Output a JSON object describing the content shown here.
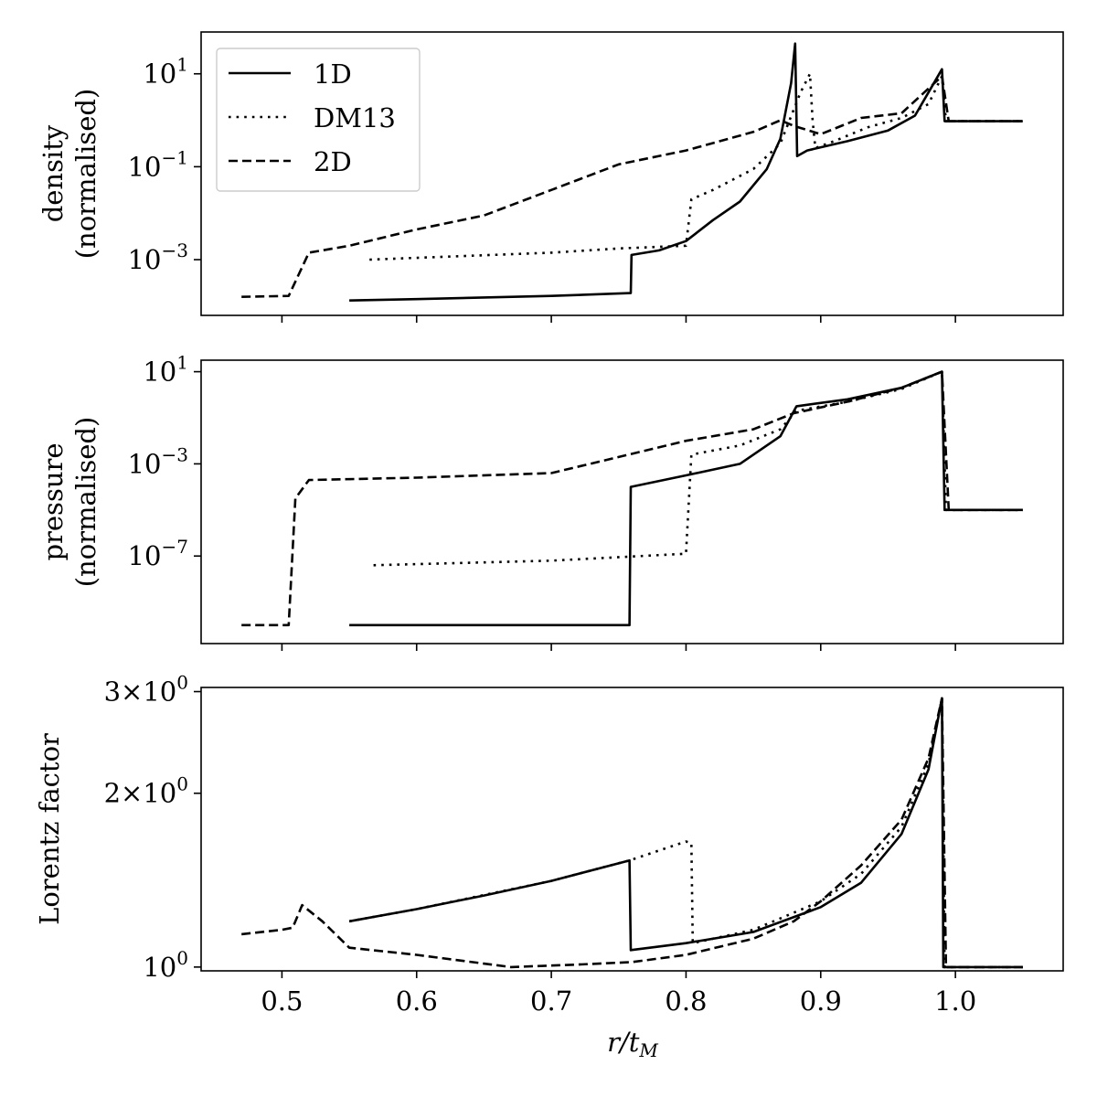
{
  "figure": {
    "xlabel": "r/t",
    "xlabel_sub": "M",
    "legend": {
      "location": "upper-left of top panel",
      "entries": [
        {
          "label": "1D",
          "style": "solid"
        },
        {
          "label": "DM13",
          "style": "dotted"
        },
        {
          "label": "2D",
          "style": "dashed"
        }
      ]
    },
    "line_color": "#000000",
    "background": "#ffffff"
  },
  "chart_data": [
    {
      "type": "line",
      "panel": "top",
      "ylabel_line1": "density",
      "ylabel_line2": "(normalised)",
      "yscale": "log",
      "xlim": [
        0.44,
        1.08
      ],
      "ylim_log10": [
        -4.2,
        1.9
      ],
      "x_ticks": [
        0.5,
        0.6,
        0.7,
        0.8,
        0.9,
        1.0
      ],
      "x_tick_labels": [
        "",
        "",
        "",
        "",
        "",
        ""
      ],
      "y_ticks": [
        {
          "base": "10",
          "exp": "1",
          "log10": 1
        },
        {
          "base": "10",
          "exp": "−1",
          "log10": -1
        },
        {
          "base": "10",
          "exp": "−3",
          "log10": -3
        }
      ],
      "series": [
        {
          "name": "1D",
          "style": "solid",
          "x": [
            0.55,
            0.6,
            0.7,
            0.759,
            0.7595,
            0.78,
            0.8,
            0.82,
            0.84,
            0.86,
            0.87,
            0.878,
            0.881,
            0.8825,
            0.89,
            0.92,
            0.95,
            0.97,
            0.99,
            0.992,
            1.05
          ],
          "y": [
            -3.88,
            -3.85,
            -3.78,
            -3.72,
            -2.9,
            -2.8,
            -2.6,
            -2.15,
            -1.75,
            -1.05,
            -0.4,
            0.8,
            1.65,
            -0.77,
            -0.65,
            -0.45,
            -0.22,
            0.1,
            1.1,
            -0.02,
            -0.02
          ]
        },
        {
          "name": "DM13",
          "style": "dotted",
          "x": [
            0.565,
            0.7,
            0.75,
            0.8,
            0.804,
            0.82,
            0.85,
            0.87,
            0.885,
            0.892,
            0.894,
            0.896,
            0.91,
            0.935,
            0.96,
            0.98,
            0.99,
            0.993,
            1.05
          ],
          "y": [
            -3.0,
            -2.85,
            -2.76,
            -2.7,
            -1.7,
            -1.5,
            -1.05,
            -0.5,
            0.6,
            1.0,
            0.0,
            -0.6,
            -0.45,
            -0.15,
            0.05,
            0.35,
            0.95,
            -0.02,
            -0.02
          ]
        },
        {
          "name": "2D",
          "style": "dashed",
          "x": [
            0.47,
            0.505,
            0.52,
            0.55,
            0.6,
            0.65,
            0.7,
            0.75,
            0.8,
            0.85,
            0.87,
            0.88,
            0.9,
            0.93,
            0.96,
            0.99,
            0.995,
            1.05
          ],
          "y": [
            -3.8,
            -3.78,
            -2.85,
            -2.7,
            -2.35,
            -2.05,
            -1.5,
            -0.95,
            -0.65,
            -0.25,
            0.0,
            -0.12,
            -0.3,
            0.05,
            0.15,
            0.95,
            -0.02,
            -0.02
          ]
        }
      ]
    },
    {
      "type": "line",
      "panel": "middle",
      "ylabel_line1": "pressure",
      "ylabel_line2": "(normalised)",
      "yscale": "log",
      "xlim": [
        0.44,
        1.08
      ],
      "ylim_log10": [
        -10.8,
        1.5
      ],
      "x_ticks": [
        0.5,
        0.6,
        0.7,
        0.8,
        0.9,
        1.0
      ],
      "x_tick_labels": [
        "",
        "",
        "",
        "",
        "",
        ""
      ],
      "y_ticks": [
        {
          "base": "10",
          "exp": "1",
          "log10": 1
        },
        {
          "base": "10",
          "exp": "−3",
          "log10": -3
        },
        {
          "base": "10",
          "exp": "−7",
          "log10": -7
        }
      ],
      "series": [
        {
          "name": "1D",
          "style": "solid",
          "x": [
            0.55,
            0.758,
            0.759,
            0.8,
            0.84,
            0.87,
            0.882,
            0.92,
            0.96,
            0.99,
            0.992,
            1.05
          ],
          "y": [
            -10.0,
            -10.0,
            -4.0,
            -3.5,
            -3.0,
            -1.8,
            -0.5,
            -0.2,
            0.3,
            1.0,
            -5.0,
            -5.0
          ]
        },
        {
          "name": "DM13",
          "style": "dotted",
          "x": [
            0.568,
            0.7,
            0.8,
            0.804,
            0.84,
            0.87,
            0.882,
            0.92,
            0.96,
            0.99,
            0.993,
            1.05
          ],
          "y": [
            -7.4,
            -7.2,
            -6.9,
            -2.6,
            -2.2,
            -1.5,
            -0.7,
            -0.3,
            0.25,
            1.0,
            -5.0,
            -5.0
          ]
        },
        {
          "name": "2D",
          "style": "dashed",
          "x": [
            0.47,
            0.505,
            0.51,
            0.52,
            0.6,
            0.7,
            0.75,
            0.8,
            0.85,
            0.88,
            0.92,
            0.96,
            0.99,
            0.995,
            1.05
          ],
          "y": [
            -10.0,
            -10.0,
            -4.5,
            -3.7,
            -3.6,
            -3.4,
            -2.7,
            -2.0,
            -1.5,
            -0.8,
            -0.3,
            0.3,
            1.0,
            -5.0,
            -5.0
          ]
        }
      ]
    },
    {
      "type": "line",
      "panel": "bottom",
      "ylabel": "Lorentz factor",
      "yscale": "log",
      "xlim": [
        0.44,
        1.08
      ],
      "ylim": [
        0.985,
        3.05
      ],
      "x_ticks": [
        0.5,
        0.6,
        0.7,
        0.8,
        0.9,
        1.0
      ],
      "x_tick_labels": [
        "0.5",
        "0.6",
        "0.7",
        "0.8",
        "0.9",
        "1.0"
      ],
      "y_ticks": [
        {
          "label": "3×10",
          "exp": "0",
          "value": 3.0
        },
        {
          "label": "2×10",
          "exp": "0",
          "value": 2.0
        },
        {
          "label": "10",
          "exp": "0",
          "value": 1.0
        }
      ],
      "series": [
        {
          "name": "1D",
          "style": "solid",
          "x": [
            0.55,
            0.6,
            0.65,
            0.7,
            0.758,
            0.759,
            0.8,
            0.85,
            0.9,
            0.93,
            0.96,
            0.98,
            0.99,
            0.991,
            1.05
          ],
          "y": [
            1.2,
            1.26,
            1.33,
            1.41,
            1.53,
            1.07,
            1.1,
            1.15,
            1.27,
            1.4,
            1.7,
            2.2,
            2.92,
            1.0,
            1.0
          ]
        },
        {
          "name": "DM13",
          "style": "dotted",
          "x": [
            0.55,
            0.6,
            0.7,
            0.758,
            0.8,
            0.804,
            0.805,
            0.85,
            0.9,
            0.93,
            0.96,
            0.98,
            0.99,
            0.992,
            1.05
          ],
          "y": [
            1.2,
            1.26,
            1.41,
            1.53,
            1.65,
            1.64,
            1.1,
            1.16,
            1.3,
            1.45,
            1.75,
            2.25,
            2.92,
            1.0,
            1.0
          ]
        },
        {
          "name": "2D",
          "style": "dashed",
          "x": [
            0.47,
            0.5,
            0.508,
            0.515,
            0.53,
            0.55,
            0.6,
            0.67,
            0.72,
            0.76,
            0.8,
            0.85,
            0.88,
            0.9,
            0.93,
            0.96,
            0.98,
            0.99,
            0.993,
            1.05
          ],
          "y": [
            1.14,
            1.16,
            1.17,
            1.28,
            1.2,
            1.08,
            1.05,
            1.0,
            1.01,
            1.02,
            1.05,
            1.12,
            1.2,
            1.3,
            1.5,
            1.8,
            2.3,
            2.92,
            1.0,
            1.0
          ]
        }
      ]
    }
  ]
}
